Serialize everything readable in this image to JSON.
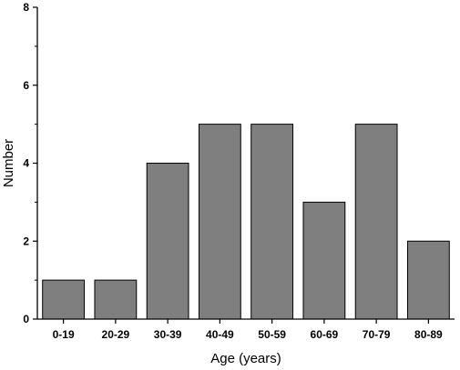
{
  "chart_data": {
    "type": "bar",
    "categories": [
      "0-19",
      "20-29",
      "30-39",
      "40-49",
      "50-59",
      "60-69",
      "70-79",
      "80-89"
    ],
    "values": [
      1,
      1,
      4,
      5,
      5,
      3,
      5,
      2
    ],
    "xlabel": "Age (years)",
    "ylabel": "Number",
    "ylim": [
      0,
      8
    ],
    "yticks": [
      0,
      2,
      4,
      6,
      8
    ],
    "grid": false,
    "legend": "none",
    "bar_color": "#7f7f7f",
    "bar_edge_color": "#000000"
  }
}
